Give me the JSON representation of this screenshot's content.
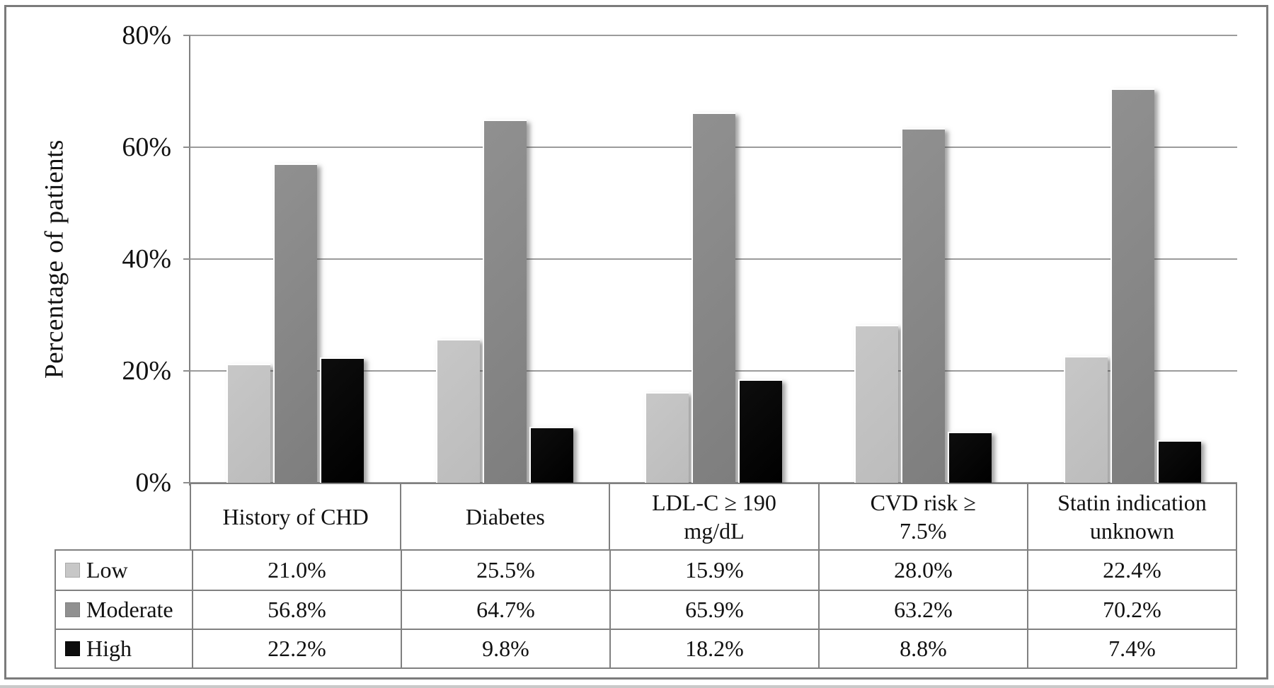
{
  "chart_data": {
    "type": "bar",
    "title": "",
    "xlabel": "",
    "ylabel": "Percentage of patients",
    "ylim": [
      0,
      80
    ],
    "grid": true,
    "legend_position": "table-left",
    "value_suffix": "%",
    "yticks": [
      {
        "value": 0,
        "label": "0%"
      },
      {
        "value": 20,
        "label": "20%"
      },
      {
        "value": 40,
        "label": "40%"
      },
      {
        "value": 60,
        "label": "60%"
      },
      {
        "value": 80,
        "label": "80%"
      }
    ],
    "categories": [
      "History of CHD",
      "Diabetes",
      "LDL-C ≥ 190\nmg/dL",
      "CVD risk ≥\n7.5%",
      "Statin indication\nunknown"
    ],
    "series": [
      {
        "name": "Low",
        "color": "#c7c7c7",
        "color_dark": "#bcbcbc",
        "values": [
          21.0,
          25.5,
          15.9,
          28.0,
          22.4
        ]
      },
      {
        "name": "Moderate",
        "color": "#909090",
        "color_dark": "#7e7e7e",
        "values": [
          56.8,
          64.7,
          65.9,
          63.2,
          70.2
        ]
      },
      {
        "name": "High",
        "color": "#0d0d0d",
        "color_dark": "#000000",
        "values": [
          22.2,
          9.8,
          18.2,
          8.8,
          7.4
        ]
      }
    ]
  },
  "colors": {
    "gridline": "#9b9b9b",
    "axis": "#808080",
    "table_border": "#808080",
    "figure_border": "#7b7b7b"
  }
}
